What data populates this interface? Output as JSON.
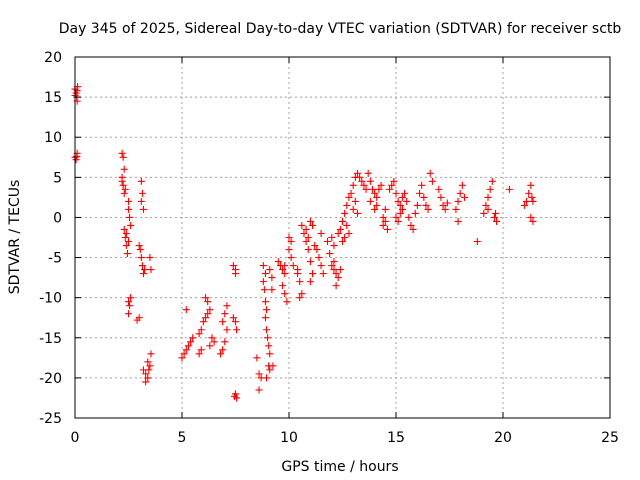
{
  "chart_data": {
    "type": "scatter",
    "title": "Day 345 of 2025, Sidereal Day-to-day VTEC variation (SDTVAR) for receiver sctb",
    "xlabel": "GPS time / hours",
    "ylabel": "SDTVAR / TECUs",
    "xlim": [
      0,
      25
    ],
    "ylim": [
      -25,
      20
    ],
    "xticks": [
      0,
      5,
      10,
      15,
      20,
      25
    ],
    "yticks": [
      20,
      15,
      10,
      5,
      0,
      -5,
      -10,
      -15,
      -20,
      -25
    ],
    "grid": true,
    "marker": "+",
    "color": "#ff0000",
    "series": [
      {
        "name": "SDTVAR",
        "points": [
          [
            0.0,
            16.0
          ],
          [
            0.05,
            15.5
          ],
          [
            0.08,
            15.0
          ],
          [
            0.1,
            14.5
          ],
          [
            0.12,
            16.3
          ],
          [
            0.0,
            15.2
          ],
          [
            0.1,
            15.8
          ],
          [
            0.0,
            7.5
          ],
          [
            0.05,
            7.2
          ],
          [
            0.1,
            8.0
          ],
          [
            0.08,
            7.6
          ],
          [
            2.2,
            8.0
          ],
          [
            2.25,
            7.5
          ],
          [
            2.3,
            6.0
          ],
          [
            2.2,
            5.0
          ],
          [
            2.25,
            4.0
          ],
          [
            2.3,
            3.0
          ],
          [
            2.35,
            3.5
          ],
          [
            2.2,
            4.5
          ],
          [
            2.3,
            -1.5
          ],
          [
            2.35,
            -2.5
          ],
          [
            2.4,
            -3.5
          ],
          [
            2.45,
            -4.5
          ],
          [
            2.5,
            -3.0
          ],
          [
            2.4,
            -2.0
          ],
          [
            2.5,
            1.0
          ],
          [
            2.55,
            0.0
          ],
          [
            2.6,
            -1.0
          ],
          [
            2.5,
            2.0
          ],
          [
            2.5,
            -10.5
          ],
          [
            2.55,
            -11.0
          ],
          [
            2.5,
            -12.0
          ],
          [
            2.6,
            -10.0
          ],
          [
            2.9,
            -12.8
          ],
          [
            3.0,
            -12.5
          ],
          [
            3.0,
            -3.5
          ],
          [
            3.05,
            -4.0
          ],
          [
            3.1,
            -5.0
          ],
          [
            3.15,
            -6.0
          ],
          [
            3.2,
            -7.0
          ],
          [
            3.25,
            -6.5
          ],
          [
            3.1,
            4.5
          ],
          [
            3.15,
            3.0
          ],
          [
            3.1,
            2.0
          ],
          [
            3.2,
            1.0
          ],
          [
            3.5,
            -5.0
          ],
          [
            3.55,
            -6.5
          ],
          [
            3.2,
            -19.0
          ],
          [
            3.3,
            -19.5
          ],
          [
            3.4,
            -20.0
          ],
          [
            3.45,
            -19.0
          ],
          [
            3.5,
            -18.5
          ],
          [
            3.55,
            -17.0
          ],
          [
            3.3,
            -20.5
          ],
          [
            3.4,
            -18.0
          ],
          [
            5.0,
            -17.5
          ],
          [
            5.1,
            -17.0
          ],
          [
            5.2,
            -16.5
          ],
          [
            5.3,
            -16.0
          ],
          [
            5.4,
            -15.5
          ],
          [
            5.5,
            -15.0
          ],
          [
            5.2,
            -11.5
          ],
          [
            5.8,
            -17.0
          ],
          [
            5.9,
            -16.5
          ],
          [
            5.8,
            -14.5
          ],
          [
            5.9,
            -14.0
          ],
          [
            6.0,
            -13.0
          ],
          [
            6.1,
            -12.5
          ],
          [
            6.2,
            -12.0
          ],
          [
            6.3,
            -11.5
          ],
          [
            6.1,
            -10.0
          ],
          [
            6.2,
            -10.5
          ],
          [
            6.4,
            -15.0
          ],
          [
            6.5,
            -15.5
          ],
          [
            6.3,
            -16.0
          ],
          [
            6.8,
            -17.0
          ],
          [
            6.9,
            -16.5
          ],
          [
            7.0,
            -15.5
          ],
          [
            7.1,
            -14.0
          ],
          [
            7.0,
            -12.0
          ],
          [
            7.1,
            -11.0
          ],
          [
            6.9,
            -13.0
          ],
          [
            7.4,
            -6.0
          ],
          [
            7.5,
            -6.5
          ],
          [
            7.5,
            -7.0
          ],
          [
            7.4,
            -12.5
          ],
          [
            7.5,
            -13.0
          ],
          [
            7.55,
            -14.0
          ],
          [
            7.5,
            -22.0
          ],
          [
            7.55,
            -22.5
          ],
          [
            7.45,
            -22.3
          ],
          [
            8.5,
            -17.5
          ],
          [
            8.6,
            -19.5
          ],
          [
            8.7,
            -20.0
          ],
          [
            8.6,
            -21.5
          ],
          [
            8.8,
            -6.0
          ],
          [
            8.9,
            -7.0
          ],
          [
            8.8,
            -8.0
          ],
          [
            8.85,
            -9.0
          ],
          [
            8.9,
            -10.5
          ],
          [
            8.95,
            -11.5
          ],
          [
            8.9,
            -12.5
          ],
          [
            8.95,
            -14.0
          ],
          [
            9.0,
            -15.0
          ],
          [
            9.05,
            -16.0
          ],
          [
            9.1,
            -17.0
          ],
          [
            9.05,
            -18.5
          ],
          [
            9.1,
            -19.0
          ],
          [
            8.95,
            -20.0
          ],
          [
            9.1,
            -6.5
          ],
          [
            9.2,
            -7.5
          ],
          [
            9.2,
            -9.0
          ],
          [
            9.25,
            -18.5
          ],
          [
            9.5,
            -5.5
          ],
          [
            9.6,
            -6.0
          ],
          [
            9.7,
            -6.5
          ],
          [
            9.8,
            -7.0
          ],
          [
            9.7,
            -8.5
          ],
          [
            9.8,
            -9.5
          ],
          [
            9.9,
            -10.5
          ],
          [
            9.8,
            -6.0
          ],
          [
            10.0,
            -4.0
          ],
          [
            10.1,
            -5.0
          ],
          [
            10.2,
            -6.0
          ],
          [
            10.1,
            -3.0
          ],
          [
            10.0,
            -2.5
          ],
          [
            10.4,
            -6.5
          ],
          [
            10.5,
            -8.0
          ],
          [
            10.6,
            -9.5
          ],
          [
            10.5,
            -10.0
          ],
          [
            10.4,
            -7.0
          ],
          [
            10.6,
            -1.0
          ],
          [
            10.7,
            -2.0
          ],
          [
            10.8,
            -3.0
          ],
          [
            10.9,
            -4.0
          ],
          [
            11.0,
            -5.5
          ],
          [
            11.1,
            -7.0
          ],
          [
            11.0,
            -8.0
          ],
          [
            10.8,
            -1.5
          ],
          [
            10.9,
            -2.5
          ],
          [
            11.0,
            -0.5
          ],
          [
            11.1,
            -1.0
          ],
          [
            11.2,
            -3.5
          ],
          [
            11.3,
            -4.0
          ],
          [
            11.4,
            -5.0
          ],
          [
            11.5,
            -6.0
          ],
          [
            11.6,
            -7.0
          ],
          [
            11.5,
            -2.0
          ],
          [
            11.8,
            -3.0
          ],
          [
            11.9,
            -4.5
          ],
          [
            12.0,
            -2.5
          ],
          [
            12.1,
            -3.5
          ],
          [
            12.0,
            -6.0
          ],
          [
            12.1,
            -6.5
          ],
          [
            12.2,
            -7.0
          ],
          [
            12.3,
            -7.5
          ],
          [
            12.4,
            -6.5
          ],
          [
            12.2,
            -8.5
          ],
          [
            12.1,
            -5.5
          ],
          [
            12.3,
            -2.0
          ],
          [
            12.4,
            -1.5
          ],
          [
            12.5,
            -0.5
          ],
          [
            12.6,
            0.5
          ],
          [
            12.7,
            1.5
          ],
          [
            12.8,
            2.5
          ],
          [
            12.9,
            3.0
          ],
          [
            12.5,
            -3.0
          ],
          [
            12.6,
            -2.5
          ],
          [
            12.7,
            -1.0
          ],
          [
            12.8,
            -2.0
          ],
          [
            13.0,
            4.0
          ],
          [
            13.1,
            5.0
          ],
          [
            13.2,
            5.5
          ],
          [
            13.3,
            5.0
          ],
          [
            13.4,
            4.5
          ],
          [
            13.5,
            4.0
          ],
          [
            13.6,
            3.5
          ],
          [
            13.0,
            1.0
          ],
          [
            13.1,
            2.0
          ],
          [
            13.2,
            0.5
          ],
          [
            13.7,
            5.5
          ],
          [
            13.8,
            4.5
          ],
          [
            13.9,
            3.5
          ],
          [
            14.0,
            3.0
          ],
          [
            14.1,
            2.5
          ],
          [
            14.2,
            3.5
          ],
          [
            14.3,
            4.0
          ],
          [
            13.8,
            2.0
          ],
          [
            14.0,
            1.0
          ],
          [
            14.1,
            1.5
          ],
          [
            14.4,
            -1.0
          ],
          [
            14.5,
            -0.5
          ],
          [
            14.6,
            -1.5
          ],
          [
            14.4,
            0.0
          ],
          [
            14.5,
            1.0
          ],
          [
            14.7,
            3.5
          ],
          [
            14.8,
            4.0
          ],
          [
            14.9,
            4.5
          ],
          [
            15.0,
            3.0
          ],
          [
            15.1,
            2.0
          ],
          [
            15.2,
            1.5
          ],
          [
            15.3,
            1.0
          ],
          [
            15.0,
            0.0
          ],
          [
            15.1,
            -0.5
          ],
          [
            15.2,
            0.5
          ],
          [
            15.3,
            2.5
          ],
          [
            15.4,
            3.0
          ],
          [
            15.5,
            2.0
          ],
          [
            15.6,
            0.0
          ],
          [
            15.7,
            -1.0
          ],
          [
            15.8,
            -1.5
          ],
          [
            15.9,
            0.5
          ],
          [
            16.0,
            1.5
          ],
          [
            16.1,
            3.0
          ],
          [
            16.2,
            4.0
          ],
          [
            16.3,
            2.5
          ],
          [
            16.4,
            1.5
          ],
          [
            16.5,
            1.0
          ],
          [
            16.6,
            5.5
          ],
          [
            16.7,
            4.5
          ],
          [
            17.0,
            3.5
          ],
          [
            17.1,
            2.5
          ],
          [
            17.2,
            1.5
          ],
          [
            17.3,
            1.0
          ],
          [
            17.4,
            1.8
          ],
          [
            17.8,
            1.0
          ],
          [
            17.9,
            2.0
          ],
          [
            18.0,
            3.0
          ],
          [
            18.1,
            4.0
          ],
          [
            18.2,
            2.5
          ],
          [
            17.9,
            -0.5
          ],
          [
            18.8,
            -3.0
          ],
          [
            19.1,
            0.5
          ],
          [
            19.2,
            1.5
          ],
          [
            19.3,
            2.5
          ],
          [
            19.4,
            3.5
          ],
          [
            19.5,
            4.5
          ],
          [
            19.3,
            1.0
          ],
          [
            19.6,
            0.0
          ],
          [
            19.7,
            -0.5
          ],
          [
            19.65,
            0.5
          ],
          [
            20.3,
            3.5
          ],
          [
            21.0,
            1.5
          ],
          [
            21.1,
            2.0
          ],
          [
            21.2,
            3.0
          ],
          [
            21.3,
            4.0
          ],
          [
            21.4,
            2.0
          ],
          [
            21.3,
            0.0
          ],
          [
            21.4,
            -0.5
          ],
          [
            21.35,
            2.5
          ]
        ]
      }
    ]
  }
}
